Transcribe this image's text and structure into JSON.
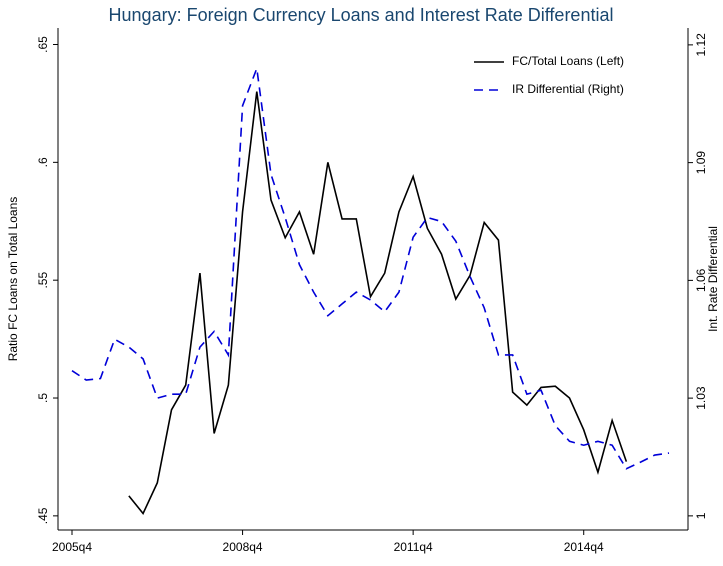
{
  "chart_data": {
    "type": "line",
    "title": "Hungary: Foreign Currency Loans and Interest Rate Differential",
    "ylabel": "Ratio FC Loans on Total Loans",
    "y2label": "Int. Rate Differential",
    "categories": [
      "2005q4",
      null,
      null,
      null,
      null,
      null,
      null,
      null,
      null,
      null,
      null,
      null,
      "2008q4",
      null,
      null,
      null,
      null,
      null,
      null,
      null,
      null,
      null,
      null,
      null,
      "2011q4",
      null,
      null,
      null,
      null,
      null,
      null,
      null,
      null,
      null,
      null,
      null,
      "2014q4",
      null,
      null,
      null,
      null,
      null,
      null
    ],
    "series": [
      {
        "name": "FC/Total Loans (Left)",
        "color": "#000000",
        "line_style": "solid",
        "values": [
          null,
          null,
          null,
          null,
          0.4585,
          0.451,
          0.464,
          0.495,
          0.5055,
          0.553,
          0.485,
          0.5055,
          0.579,
          0.63,
          0.584,
          0.568,
          0.579,
          0.561,
          0.6,
          0.576,
          0.576,
          0.543,
          0.553,
          0.579,
          0.594,
          0.572,
          0.561,
          0.542,
          0.552,
          0.5745,
          0.567,
          0.5025,
          0.497,
          0.5045,
          0.505,
          0.5,
          0.4865,
          0.4685,
          0.4905,
          0.473,
          null,
          null,
          null
        ]
      },
      {
        "name": "IR Differential (Right)",
        "color": "#0000d8",
        "line_style": "dash",
        "axis": "y2",
        "values": [
          1.037,
          1.0346,
          1.035,
          1.045,
          1.043,
          1.04,
          1.03,
          1.031,
          1.031,
          1.043,
          1.047,
          1.041,
          1.1045,
          1.114,
          1.087,
          1.076,
          1.064,
          1.057,
          1.051,
          1.054,
          1.057,
          1.055,
          1.052,
          1.057,
          1.071,
          1.076,
          1.075,
          1.07,
          1.061,
          1.053,
          1.041,
          1.041,
          1.031,
          1.032,
          1.023,
          1.019,
          1.018,
          1.019,
          1.018,
          1.012,
          1.0137,
          1.0155,
          1.016
        ]
      }
    ],
    "ylim": [
      0.444,
      0.657
    ],
    "yticks": [
      {
        "value": 0.45,
        "label": ".45"
      },
      {
        "value": 0.5,
        "label": ".5"
      },
      {
        "value": 0.55,
        "label": ".55"
      },
      {
        "value": 0.6,
        "label": ".6"
      },
      {
        "value": 0.65,
        "label": ".65"
      }
    ],
    "y2lim": [
      0.9964,
      1.1243
    ],
    "y2ticks": [
      1,
      1.03,
      1.06,
      1.09,
      1.12
    ],
    "legend": "top-right",
    "grid": false
  }
}
